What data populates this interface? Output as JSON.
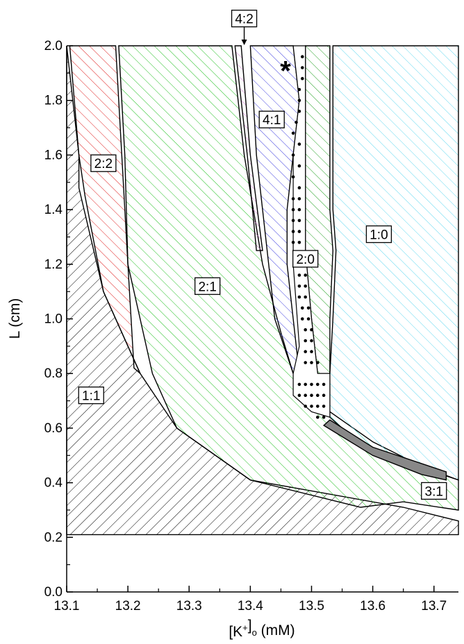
{
  "chart_data": {
    "type": "area",
    "title": "",
    "xlabel": "[K",
    "xlabel_sup": "+",
    "xlabel_sub": "o",
    "xlabel_unit": " (mM)",
    "ylabel": "L (cm)",
    "xlim": [
      13.1,
      13.74
    ],
    "ylim": [
      0.0,
      2.0
    ],
    "x_ticks": [
      "13.1",
      "13.2",
      "13.3",
      "13.4",
      "13.5",
      "13.6",
      "13.7"
    ],
    "y_ticks": [
      "0.0",
      "0.2",
      "0.4",
      "0.6",
      "0.8",
      "1.0",
      "1.2",
      "1.4",
      "1.6",
      "1.8",
      "2.0"
    ],
    "grid": false,
    "annotation_marker": "*",
    "annotation_marker_pos": [
      13.46,
      1.93
    ],
    "regions": [
      {
        "label": "1:1",
        "color": "#000000",
        "pattern": "hatch-left",
        "label_pos": [
          13.14,
          0.72
        ],
        "polygon": [
          [
            13.1,
            2.0
          ],
          [
            13.12,
            1.6
          ],
          [
            13.12,
            1.48
          ],
          [
            13.16,
            1.1
          ],
          [
            13.22,
            0.8
          ],
          [
            13.28,
            0.6
          ],
          [
            13.4,
            0.41
          ],
          [
            13.65,
            0.31
          ],
          [
            13.74,
            0.26
          ],
          [
            13.74,
            0.21
          ],
          [
            13.1,
            0.21
          ]
        ]
      },
      {
        "label": "2:2",
        "color": "#e02020",
        "pattern": "hatch-right",
        "label_pos": [
          13.16,
          1.57
        ],
        "polygon": [
          [
            13.105,
            2.0
          ],
          [
            13.18,
            2.0
          ],
          [
            13.19,
            1.6
          ],
          [
            13.2,
            1.2
          ],
          [
            13.21,
            0.82
          ],
          [
            13.22,
            0.8
          ],
          [
            13.16,
            1.1
          ],
          [
            13.13,
            1.45
          ],
          [
            13.12,
            1.6
          ]
        ]
      },
      {
        "label": "2:1",
        "color": "#20c020",
        "pattern": "hatch-right",
        "label_pos": [
          13.33,
          1.12
        ],
        "polygon": [
          [
            13.185,
            2.0
          ],
          [
            13.37,
            2.0
          ],
          [
            13.38,
            1.8
          ],
          [
            13.39,
            1.6
          ],
          [
            13.42,
            1.2
          ],
          [
            13.45,
            0.95
          ],
          [
            13.47,
            0.8
          ],
          [
            13.53,
            0.66
          ],
          [
            13.6,
            0.55
          ],
          [
            13.68,
            0.46
          ],
          [
            13.74,
            0.41
          ],
          [
            13.74,
            0.3
          ],
          [
            13.65,
            0.33
          ],
          [
            13.58,
            0.31
          ],
          [
            13.4,
            0.41
          ],
          [
            13.28,
            0.6
          ],
          [
            13.24,
            0.8
          ],
          [
            13.2,
            1.2
          ],
          [
            13.195,
            1.6
          ]
        ]
      },
      {
        "label": "4:2",
        "color": "#d070d0",
        "pattern": "hatch-right",
        "label_pos": [
          13.39,
          2.1
        ],
        "polygon": [
          [
            13.375,
            2.0
          ],
          [
            13.385,
            2.0
          ],
          [
            13.4,
            1.6
          ],
          [
            13.42,
            1.25
          ],
          [
            13.41,
            1.25
          ],
          [
            13.395,
            1.6
          ]
        ]
      },
      {
        "label": "4:1",
        "color": "#4040e0",
        "pattern": "hatch-right",
        "label_pos": [
          13.435,
          1.73
        ],
        "polygon": [
          [
            13.4,
            2.0
          ],
          [
            13.47,
            2.0
          ],
          [
            13.48,
            1.8
          ],
          [
            13.47,
            1.6
          ],
          [
            13.46,
            1.4
          ],
          [
            13.46,
            1.2
          ],
          [
            13.47,
            1.0
          ],
          [
            13.48,
            0.8
          ],
          [
            13.47,
            0.8
          ],
          [
            13.44,
            1.0
          ],
          [
            13.43,
            1.2
          ],
          [
            13.42,
            1.4
          ],
          [
            13.41,
            1.6
          ]
        ]
      },
      {
        "label": "2:0",
        "color": "#20a020",
        "pattern": "hatch-right",
        "label_pos": [
          13.49,
          1.22
        ],
        "polygon": [
          [
            13.49,
            2.0
          ],
          [
            13.53,
            2.0
          ],
          [
            13.53,
            1.4
          ],
          [
            13.535,
            1.25
          ],
          [
            13.53,
            1.0
          ],
          [
            13.53,
            0.8
          ],
          [
            13.51,
            0.8
          ],
          [
            13.5,
            1.0
          ],
          [
            13.49,
            1.25
          ],
          [
            13.49,
            1.6
          ]
        ]
      },
      {
        "label": "1:0",
        "color": "#60d8f0",
        "pattern": "hatch-right",
        "label_pos": [
          13.61,
          1.31
        ],
        "polygon": [
          [
            13.535,
            2.0
          ],
          [
            13.74,
            2.0
          ],
          [
            13.74,
            0.41
          ],
          [
            13.7,
            0.44
          ],
          [
            13.62,
            0.5
          ],
          [
            13.57,
            0.56
          ],
          [
            13.53,
            0.64
          ],
          [
            13.53,
            0.8
          ],
          [
            13.535,
            1.0
          ],
          [
            13.54,
            1.25
          ],
          [
            13.535,
            1.4
          ]
        ]
      },
      {
        "label": "3:1",
        "color": "#888888",
        "pattern": "solid",
        "label_pos": [
          13.7,
          0.37
        ],
        "polygon": [
          [
            13.53,
            0.63
          ],
          [
            13.6,
            0.53
          ],
          [
            13.68,
            0.47
          ],
          [
            13.72,
            0.44
          ],
          [
            13.72,
            0.41
          ],
          [
            13.68,
            0.43
          ],
          [
            13.6,
            0.5
          ],
          [
            13.52,
            0.61
          ]
        ]
      }
    ],
    "dotted_region": {
      "polygon": [
        [
          13.47,
          2.0
        ],
        [
          13.49,
          2.0
        ],
        [
          13.49,
          1.6
        ],
        [
          13.49,
          1.25
        ],
        [
          13.5,
          1.0
        ],
        [
          13.51,
          0.8
        ],
        [
          13.53,
          0.8
        ],
        [
          13.53,
          0.64
        ],
        [
          13.5,
          0.66
        ],
        [
          13.47,
          0.72
        ],
        [
          13.47,
          0.8
        ],
        [
          13.48,
          0.9
        ],
        [
          13.47,
          1.2
        ],
        [
          13.47,
          1.6
        ],
        [
          13.48,
          1.8
        ]
      ],
      "dot_grid": [
        [
          13.485,
          1.96
        ],
        [
          13.485,
          1.92
        ],
        [
          13.485,
          1.88
        ],
        [
          13.48,
          1.84
        ],
        [
          13.48,
          1.8
        ],
        [
          13.48,
          1.76
        ],
        [
          13.475,
          1.72
        ],
        [
          13.47,
          1.68
        ],
        [
          13.48,
          1.64
        ],
        [
          13.47,
          1.6
        ],
        [
          13.48,
          1.56
        ],
        [
          13.47,
          1.52
        ],
        [
          13.48,
          1.48
        ],
        [
          13.47,
          1.44
        ],
        [
          13.48,
          1.44
        ],
        [
          13.47,
          1.4
        ],
        [
          13.48,
          1.4
        ],
        [
          13.47,
          1.36
        ],
        [
          13.48,
          1.36
        ],
        [
          13.47,
          1.32
        ],
        [
          13.48,
          1.32
        ],
        [
          13.47,
          1.28
        ],
        [
          13.48,
          1.28
        ],
        [
          13.475,
          1.24
        ],
        [
          13.485,
          1.24
        ],
        [
          13.475,
          1.2
        ],
        [
          13.485,
          1.2
        ],
        [
          13.48,
          1.16
        ],
        [
          13.49,
          1.16
        ],
        [
          13.48,
          1.12
        ],
        [
          13.49,
          1.12
        ],
        [
          13.48,
          1.08
        ],
        [
          13.49,
          1.08
        ],
        [
          13.485,
          1.04
        ],
        [
          13.495,
          1.04
        ],
        [
          13.485,
          1.0
        ],
        [
          13.495,
          1.0
        ],
        [
          13.49,
          0.96
        ],
        [
          13.5,
          0.96
        ],
        [
          13.49,
          0.92
        ],
        [
          13.5,
          0.92
        ],
        [
          13.49,
          0.88
        ],
        [
          13.5,
          0.88
        ],
        [
          13.49,
          0.84
        ],
        [
          13.5,
          0.84
        ],
        [
          13.51,
          0.84
        ],
        [
          13.48,
          0.76
        ],
        [
          13.49,
          0.76
        ],
        [
          13.5,
          0.76
        ],
        [
          13.51,
          0.76
        ],
        [
          13.52,
          0.76
        ],
        [
          13.48,
          0.72
        ],
        [
          13.49,
          0.72
        ],
        [
          13.5,
          0.72
        ],
        [
          13.51,
          0.72
        ],
        [
          13.52,
          0.72
        ],
        [
          13.49,
          0.68
        ],
        [
          13.5,
          0.68
        ],
        [
          13.51,
          0.68
        ],
        [
          13.52,
          0.68
        ],
        [
          13.51,
          0.64
        ],
        [
          13.52,
          0.64
        ]
      ]
    }
  }
}
